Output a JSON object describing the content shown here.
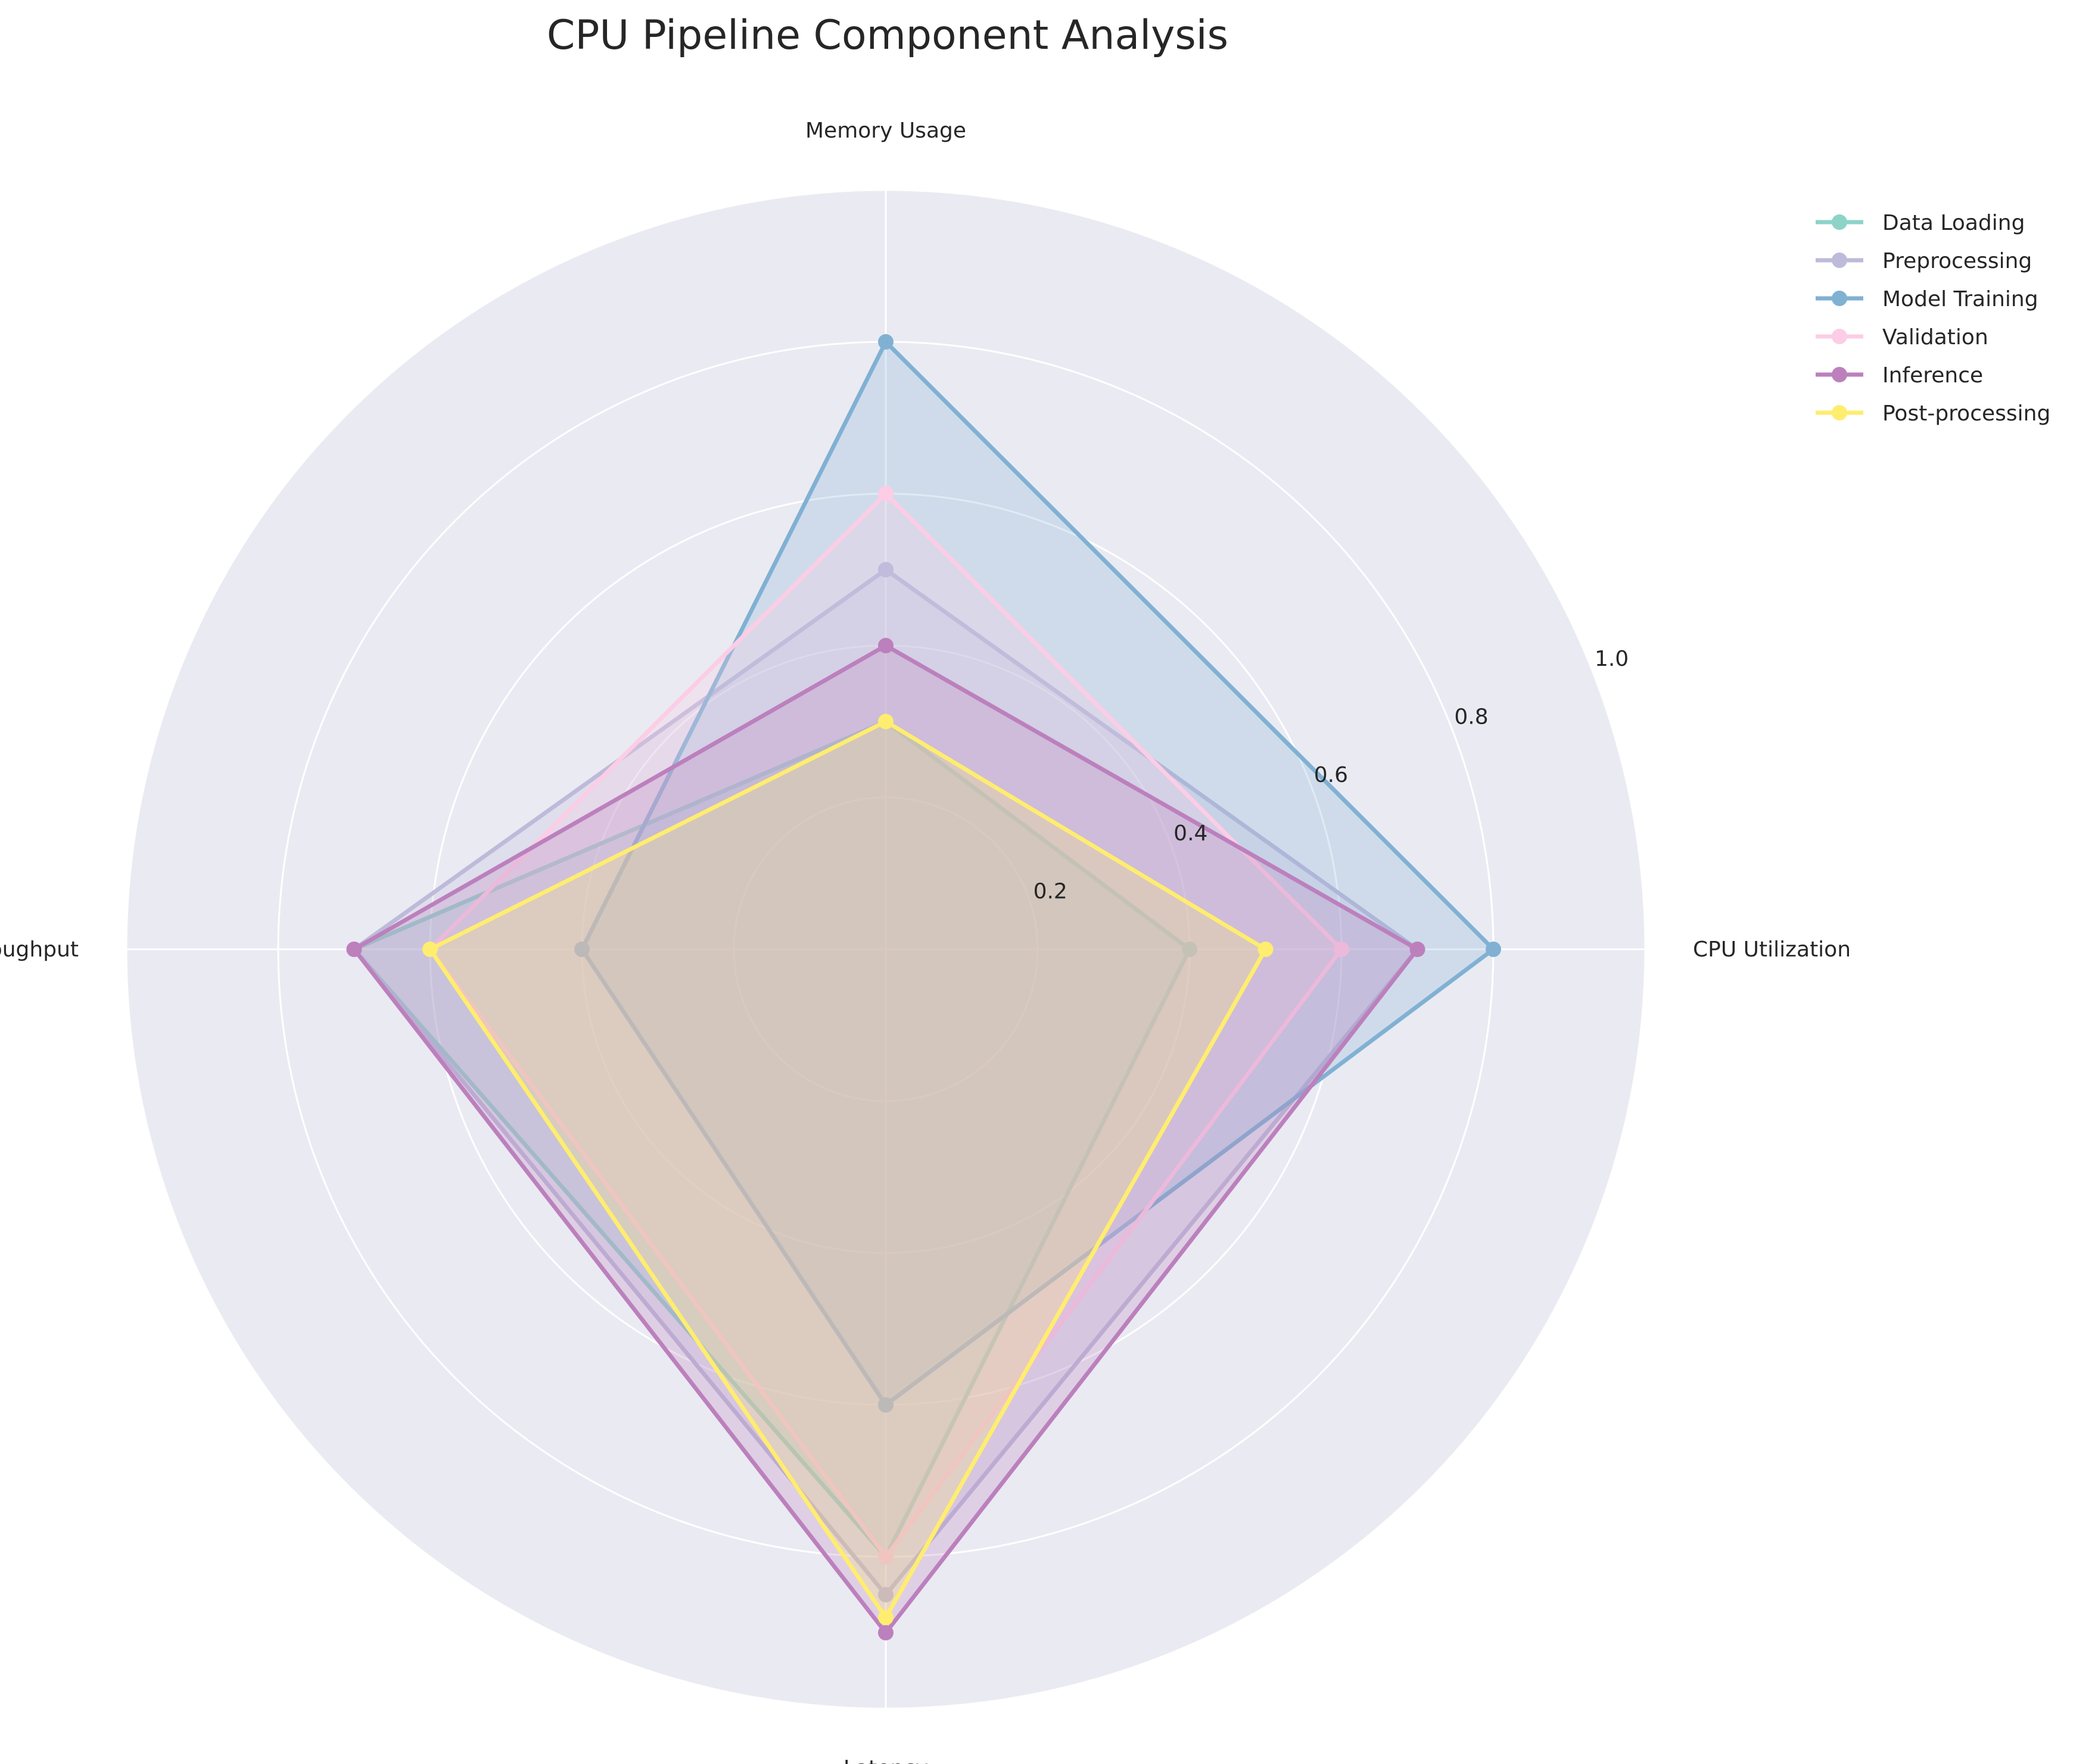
{
  "chart_data": {
    "type": "radar",
    "title": "CPU Pipeline Component Analysis",
    "axes": [
      "CPU Utilization",
      "Memory Usage",
      "Throughput",
      "Latency"
    ],
    "rlim": [
      0,
      1.0
    ],
    "rticks": [
      0.2,
      0.4,
      0.6,
      0.8,
      1.0
    ],
    "rtick_labels": [
      "0.2",
      "0.4",
      "0.6",
      "0.8",
      "1.0"
    ],
    "grid": true,
    "legend_position": "top-right outside",
    "background_color": "#eaeaf2",
    "series": [
      {
        "name": "Data Loading",
        "color": "#8dd3c7",
        "values": [
          0.4,
          0.3,
          0.7,
          0.8
        ]
      },
      {
        "name": "Preprocessing",
        "color": "#bebada",
        "values": [
          0.7,
          0.5,
          0.7,
          0.85
        ]
      },
      {
        "name": "Model Training",
        "color": "#80b1d3",
        "values": [
          0.8,
          0.8,
          0.4,
          0.6
        ]
      },
      {
        "name": "Validation",
        "color": "#fccde5",
        "values": [
          0.6,
          0.6,
          0.6,
          0.8
        ]
      },
      {
        "name": "Inference",
        "color": "#bc80bd",
        "values": [
          0.7,
          0.4,
          0.7,
          0.9
        ]
      },
      {
        "name": "Post-processing",
        "color": "#ffed6f",
        "values": [
          0.5,
          0.3,
          0.6,
          0.88
        ]
      }
    ]
  }
}
